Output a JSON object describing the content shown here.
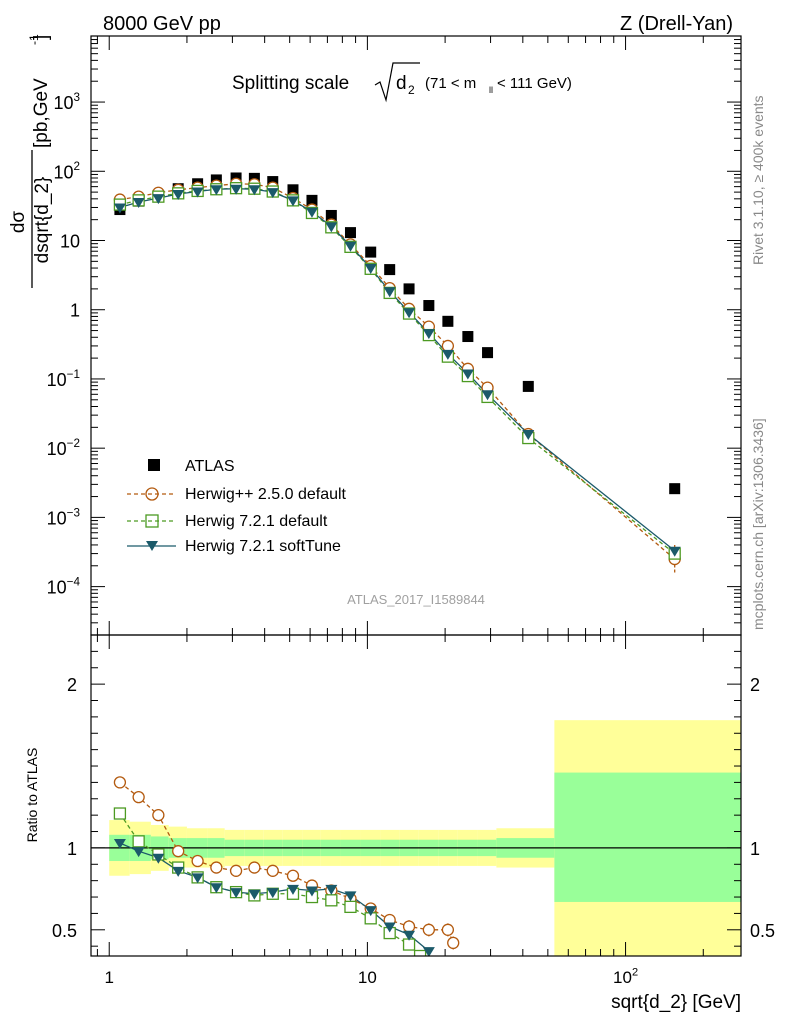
{
  "header": {
    "left": "8000 GeV pp",
    "right": "Z (Drell-Yan)"
  },
  "side_labels": {
    "rivet": "Rivet 3.1.10, ≥ 400k events",
    "mcplots": "mcplots.cern.ch [arXiv:1306.3436]"
  },
  "colors": {
    "atlas": "#000000",
    "herwigpp": "#b35a0f",
    "herwig721": "#4c9a22",
    "softtune": "#1b5a6a",
    "band_outer": "#ffff99",
    "band_inner": "#99ff99"
  },
  "chart_data": [
    {
      "type": "scatter",
      "panel": "main",
      "title": "Splitting scale",
      "title_sym": "d",
      "title_sub": "2",
      "title_range": "(71 < m",
      "title_range_sub": "ll",
      "title_range_end": " < 111 GeV)",
      "ylabel_num": "dσ",
      "ylabel_den": "dsqrt{d_2}",
      "ylabel_unit": "[pb,GeV",
      "ylabel_unit_sup": "-1",
      "ylabel_unit_end": "]",
      "xscale": "log",
      "yscale": "log",
      "xlim": [
        0.85,
        280
      ],
      "ylim": [
        2e-05,
        9000
      ],
      "ytick_labels": [
        {
          "v": 0.0001,
          "m": "10",
          "e": "−4"
        },
        {
          "v": 0.001,
          "m": "10",
          "e": "−3"
        },
        {
          "v": 0.01,
          "m": "10",
          "e": "−2"
        },
        {
          "v": 0.1,
          "m": "10",
          "e": "−1"
        },
        {
          "v": 1,
          "m": "1",
          "e": ""
        },
        {
          "v": 10,
          "m": "10",
          "e": ""
        },
        {
          "v": 100,
          "m": "10",
          "e": "2"
        },
        {
          "v": 1000,
          "m": "10",
          "e": "3"
        }
      ],
      "legend": [
        "ATLAS",
        "Herwig++ 2.5.0 default",
        "Herwig 7.2.1 default",
        "Herwig 7.2.1 softTune"
      ],
      "watermark": "ATLAS_2017_I1589844",
      "series": [
        {
          "name": "ATLAS",
          "x": [
            1.1,
            1.3,
            1.55,
            1.85,
            2.2,
            2.6,
            3.1,
            3.65,
            4.3,
            5.15,
            6.1,
            7.25,
            8.6,
            10.3,
            12.2,
            14.5,
            17.3,
            20.5,
            24.5,
            29.2,
            42,
            155
          ],
          "y": [
            28,
            37,
            45,
            56,
            66,
            75,
            80,
            79,
            71,
            54,
            38,
            23,
            13,
            6.8,
            3.8,
            2.0,
            1.15,
            0.68,
            0.41,
            0.24,
            0.078,
            0.0026
          ]
        },
        {
          "name": "Herwig++ 2.5.0 default",
          "x": [
            1.1,
            1.3,
            1.55,
            1.85,
            2.2,
            2.6,
            3.1,
            3.65,
            4.3,
            5.15,
            6.1,
            7.25,
            8.6,
            10.3,
            12.2,
            14.5,
            17.3,
            20.5,
            24.5,
            29.2,
            42,
            155
          ],
          "y": [
            39,
            43,
            49,
            54,
            58,
            62,
            66,
            65,
            58,
            41,
            28,
            17,
            8.8,
            4.3,
            2.05,
            1.03,
            0.57,
            0.3,
            0.14,
            0.075,
            0.016,
            0.00025
          ]
        },
        {
          "name": "Herwig 7.2.1 default",
          "x": [
            1.1,
            1.3,
            1.55,
            1.85,
            2.2,
            2.6,
            3.1,
            3.65,
            4.3,
            5.15,
            6.1,
            7.25,
            8.6,
            10.3,
            12.2,
            14.5,
            17.3,
            20.5,
            24.5,
            29.2,
            42,
            155
          ],
          "y": [
            33,
            38,
            43,
            48,
            52,
            55,
            57,
            56,
            51,
            38,
            25,
            15.5,
            8.1,
            3.9,
            1.75,
            0.88,
            0.43,
            0.21,
            0.11,
            0.055,
            0.014,
            0.0003
          ]
        },
        {
          "name": "Herwig 7.2.1 softTune",
          "x": [
            1.1,
            1.3,
            1.55,
            1.85,
            2.2,
            2.6,
            3.1,
            3.65,
            4.3,
            5.15,
            6.1,
            7.25,
            8.6,
            10.3,
            12.2,
            14.5,
            17.3,
            20.5,
            24.5,
            29.2,
            42,
            155
          ],
          "y": [
            30,
            36,
            41,
            47,
            51,
            55,
            56,
            55,
            50,
            38,
            26,
            16,
            8.4,
            4.0,
            1.85,
            0.92,
            0.46,
            0.23,
            0.12,
            0.06,
            0.016,
            0.00033
          ]
        }
      ]
    },
    {
      "type": "line",
      "panel": "ratio",
      "ylabel": "Ratio to ATLAS",
      "xlabel": "sqrt{d_2} [GeV]",
      "xscale": "log",
      "xlim": [
        0.85,
        280
      ],
      "ylim": [
        0.34,
        2.3
      ],
      "yticks": [
        0.5,
        1,
        2
      ],
      "ytick_labels": [
        "0.5",
        "1",
        "2"
      ],
      "xtick_labels": [
        {
          "v": 1,
          "m": "1",
          "e": ""
        },
        {
          "v": 10,
          "m": "10",
          "e": ""
        },
        {
          "v": 100,
          "m": "10",
          "e": "2"
        }
      ],
      "bands": {
        "edges": [
          1.0,
          1.2,
          1.45,
          1.7,
          2.0,
          2.4,
          2.8,
          3.35,
          3.95,
          4.7,
          5.6,
          6.6,
          7.9,
          9.4,
          11.2,
          13.3,
          15.8,
          18.8,
          22.4,
          26.6,
          31.6,
          53,
          280
        ],
        "yellow_lo": [
          0.83,
          0.84,
          0.86,
          0.88,
          0.88,
          0.88,
          0.89,
          0.89,
          0.89,
          0.89,
          0.89,
          0.89,
          0.89,
          0.89,
          0.89,
          0.89,
          0.89,
          0.89,
          0.89,
          0.89,
          0.88,
          0.34
        ],
        "yellow_hi": [
          1.17,
          1.16,
          1.14,
          1.13,
          1.12,
          1.12,
          1.11,
          1.11,
          1.11,
          1.11,
          1.11,
          1.11,
          1.11,
          1.11,
          1.11,
          1.11,
          1.11,
          1.11,
          1.11,
          1.11,
          1.12,
          1.78
        ],
        "green_lo": [
          0.92,
          0.92,
          0.93,
          0.94,
          0.94,
          0.94,
          0.95,
          0.95,
          0.95,
          0.95,
          0.95,
          0.95,
          0.95,
          0.95,
          0.95,
          0.95,
          0.95,
          0.95,
          0.95,
          0.95,
          0.94,
          0.67
        ],
        "green_hi": [
          1.08,
          1.08,
          1.07,
          1.06,
          1.06,
          1.06,
          1.05,
          1.05,
          1.05,
          1.05,
          1.05,
          1.05,
          1.05,
          1.05,
          1.05,
          1.05,
          1.05,
          1.05,
          1.05,
          1.05,
          1.06,
          1.46
        ]
      },
      "series": [
        {
          "name": "Herwig++ 2.5.0 default",
          "x": [
            1.1,
            1.3,
            1.55,
            1.85,
            2.2,
            2.6,
            3.1,
            3.65,
            4.3,
            5.15,
            6.1,
            7.25,
            8.6,
            10.3,
            12.2,
            14.5,
            17.3,
            20.5,
            21.5
          ],
          "y": [
            1.4,
            1.31,
            1.2,
            0.98,
            0.92,
            0.88,
            0.86,
            0.88,
            0.86,
            0.83,
            0.77,
            0.74,
            0.69,
            0.63,
            0.56,
            0.52,
            0.5,
            0.5,
            0.42
          ]
        },
        {
          "name": "Herwig 7.2.1 default",
          "x": [
            1.1,
            1.3,
            1.55,
            1.85,
            2.2,
            2.6,
            3.1,
            3.65,
            4.3,
            5.15,
            6.1,
            7.25,
            8.6,
            10.3,
            12.2,
            14.5,
            16.0
          ],
          "y": [
            1.21,
            1.04,
            0.96,
            0.88,
            0.82,
            0.76,
            0.73,
            0.71,
            0.72,
            0.72,
            0.7,
            0.68,
            0.64,
            0.57,
            0.48,
            0.41,
            0.34
          ]
        },
        {
          "name": "Herwig 7.2.1 softTune",
          "x": [
            1.1,
            1.3,
            1.55,
            1.85,
            2.2,
            2.6,
            3.1,
            3.65,
            4.3,
            5.15,
            6.1,
            7.25,
            8.6,
            10.3,
            12.2,
            14.5,
            17.3
          ],
          "y": [
            1.03,
            0.98,
            0.94,
            0.86,
            0.82,
            0.76,
            0.73,
            0.72,
            0.73,
            0.75,
            0.74,
            0.75,
            0.71,
            0.62,
            0.52,
            0.47,
            0.37
          ]
        }
      ]
    }
  ]
}
